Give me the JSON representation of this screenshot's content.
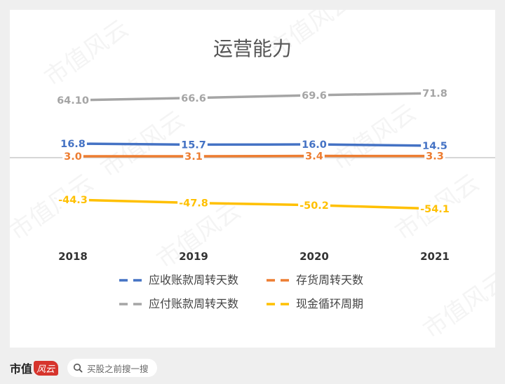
{
  "chart_data": {
    "type": "line",
    "title": "运营能力",
    "categories": [
      "2018",
      "2019",
      "2020",
      "2021"
    ],
    "series": [
      {
        "name": "应收账款周转天数",
        "color": "#4472c4",
        "values": [
          16.8,
          15.7,
          16.0,
          14.5
        ],
        "labels": [
          "16.8",
          "15.7",
          "16.0",
          "14.5"
        ]
      },
      {
        "name": "存货周转天数",
        "color": "#ed7d31",
        "values": [
          3.0,
          3.1,
          3.4,
          3.3
        ],
        "labels": [
          "3.0",
          "3.1",
          "3.4",
          "3.3"
        ]
      },
      {
        "name": "应付账款周转天数",
        "color": "#a5a5a5",
        "values": [
          64.1,
          66.6,
          69.6,
          71.8
        ],
        "labels": [
          "64.10",
          "66.6",
          "69.6",
          "71.8"
        ]
      },
      {
        "name": "现金循环周期",
        "color": "#ffc000",
        "values": [
          -44.3,
          -47.8,
          -50.2,
          -54.1
        ],
        "labels": [
          "-44.3",
          "-47.8",
          "-50.2",
          "-54.1"
        ]
      }
    ],
    "xlabel": "",
    "ylabel": "",
    "ylim": [
      -60,
      80
    ],
    "grid": false,
    "legend_position": "bottom",
    "zero_line": true
  },
  "watermark": {
    "text": "市值风云"
  },
  "footer": {
    "brand_text": "市值",
    "brand_badge": "风云",
    "search_placeholder": "买股之前搜一搜"
  }
}
